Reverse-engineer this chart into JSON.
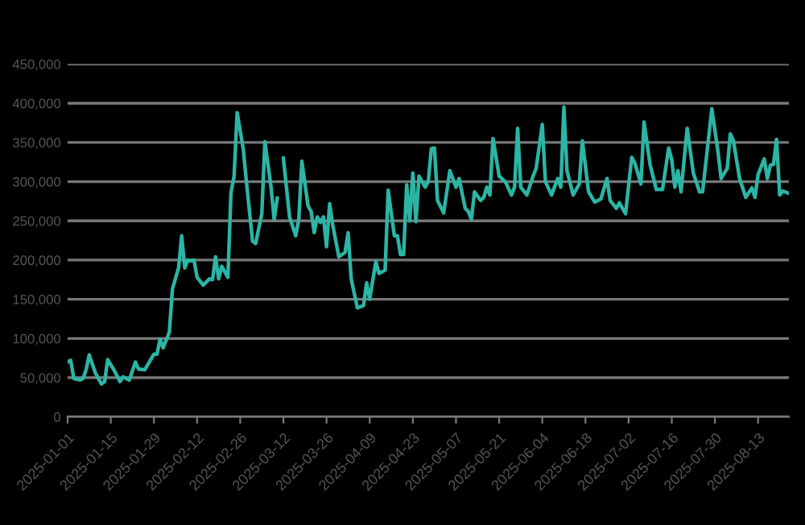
{
  "chart_data": {
    "type": "line",
    "x": [
      "2025-01-01",
      "2025-01-02",
      "2025-01-03",
      "2025-01-05",
      "2025-01-06",
      "2025-01-07",
      "2025-01-08",
      "2025-01-10",
      "2025-01-12",
      "2025-01-13",
      "2025-01-14",
      "2025-01-16",
      "2025-01-18",
      "2025-01-19",
      "2025-01-21",
      "2025-01-23",
      "2025-01-24",
      "2025-01-26",
      "2025-01-29",
      "2025-01-30",
      "2025-01-31",
      "2025-02-01",
      "2025-02-03",
      "2025-02-04",
      "2025-02-06",
      "2025-02-07",
      "2025-02-08",
      "2025-02-09",
      "2025-02-10",
      "2025-02-11",
      "2025-02-12",
      "2025-02-14",
      "2025-02-16",
      "2025-02-17",
      "2025-02-18",
      "2025-02-19",
      "2025-02-20",
      "2025-02-22",
      "2025-02-23",
      "2025-02-24",
      "2025-02-25",
      "2025-02-27",
      "2025-02-28",
      "2025-03-02",
      "2025-03-03",
      "2025-03-05",
      "2025-03-06",
      "2025-03-08",
      "2025-03-09",
      "2025-03-10",
      "2025-03-11",
      "2025-03-12",
      "2025-03-14",
      "2025-03-16",
      "2025-03-17",
      "2025-03-18",
      "2025-03-20",
      "2025-03-21",
      "2025-03-22",
      "2025-03-23",
      "2025-03-24",
      "2025-03-25",
      "2025-03-26",
      "2025-03-27",
      "2025-03-28",
      "2025-03-30",
      "2025-04-01",
      "2025-04-02",
      "2025-04-03",
      "2025-04-05",
      "2025-04-07",
      "2025-04-08",
      "2025-04-09",
      "2025-04-11",
      "2025-04-12",
      "2025-04-14",
      "2025-04-15",
      "2025-04-17",
      "2025-04-18",
      "2025-04-19",
      "2025-04-20",
      "2025-04-21",
      "2025-04-22",
      "2025-04-23",
      "2025-04-24",
      "2025-04-25",
      "2025-04-27",
      "2025-04-28",
      "2025-04-29",
      "2025-04-30",
      "2025-05-01",
      "2025-05-03",
      "2025-05-05",
      "2025-05-07",
      "2025-05-08",
      "2025-05-10",
      "2025-05-11",
      "2025-05-12",
      "2025-05-13",
      "2025-05-15",
      "2025-05-16",
      "2025-05-17",
      "2025-05-18",
      "2025-05-19",
      "2025-05-21",
      "2025-05-23",
      "2025-05-25",
      "2025-05-26",
      "2025-05-27",
      "2025-05-28",
      "2025-05-30",
      "2025-06-01",
      "2025-06-02",
      "2025-06-04",
      "2025-06-05",
      "2025-06-07",
      "2025-06-09",
      "2025-06-10",
      "2025-06-11",
      "2025-06-12",
      "2025-06-14",
      "2025-06-16",
      "2025-06-17",
      "2025-06-19",
      "2025-06-21",
      "2025-06-23",
      "2025-06-25",
      "2025-06-26",
      "2025-06-28",
      "2025-06-29",
      "2025-07-01",
      "2025-07-03",
      "2025-07-04",
      "2025-07-06",
      "2025-07-07",
      "2025-07-09",
      "2025-07-11",
      "2025-07-13",
      "2025-07-15",
      "2025-07-16",
      "2025-07-17",
      "2025-07-18",
      "2025-07-19",
      "2025-07-21",
      "2025-07-23",
      "2025-07-25",
      "2025-07-26",
      "2025-07-29",
      "2025-07-31",
      "2025-08-01",
      "2025-08-03",
      "2025-08-04",
      "2025-08-05",
      "2025-08-07",
      "2025-08-09",
      "2025-08-11",
      "2025-08-12",
      "2025-08-13",
      "2025-08-15",
      "2025-08-16",
      "2025-08-17",
      "2025-08-18",
      "2025-08-19",
      "2025-08-20",
      "2025-08-21",
      "2025-08-23"
    ],
    "series": [
      {
        "color": "#2bb5a5",
        "values": [
          70000,
          72000,
          49000,
          47000,
          49000,
          60000,
          79000,
          56000,
          42000,
          45000,
          73000,
          60000,
          45000,
          51000,
          47000,
          70000,
          61000,
          60000,
          80000,
          80000,
          99000,
          88000,
          108000,
          163000,
          190000,
          231000,
          190000,
          200000,
          199000,
          200000,
          178000,
          168000,
          176000,
          175000,
          204000,
          176000,
          192000,
          178000,
          286000,
          307000,
          388000,
          341000,
          300000,
          224000,
          221000,
          259000,
          351000,
          293000,
          252000,
          279000,
          null,
          330000,
          255000,
          231000,
          252000,
          326000,
          269000,
          262000,
          235000,
          255000,
          248000,
          255000,
          217000,
          272000,
          245000,
          204000,
          210000,
          235000,
          176000,
          139000,
          142000,
          171000,
          150000,
          198000,
          183000,
          187000,
          289000,
          231000,
          231000,
          207000,
          207000,
          296000,
          250000,
          311000,
          249000,
          307000,
          293000,
          300000,
          342000,
          343000,
          276000,
          260000,
          314000,
          293000,
          304000,
          266000,
          262000,
          252000,
          287000,
          276000,
          280000,
          293000,
          283000,
          355000,
          307000,
          300000,
          283000,
          293000,
          368000,
          293000,
          283000,
          307000,
          317000,
          373000,
          300000,
          283000,
          304000,
          293000,
          395000,
          314000,
          283000,
          297000,
          352000,
          287000,
          274000,
          278000,
          304000,
          276000,
          266000,
          273000,
          259000,
          331000,
          324000,
          297000,
          376000,
          321000,
          290000,
          290000,
          343000,
          328000,
          293000,
          314000,
          287000,
          368000,
          311000,
          287000,
          287000,
          393000,
          338000,
          304000,
          317000,
          361000,
          352000,
          304000,
          280000,
          292000,
          280000,
          309000,
          329000,
          304000,
          321000,
          322000,
          354000,
          283000,
          288000,
          285000
        ]
      }
    ],
    "xlim": [
      "2025-01-01",
      "2025-08-23"
    ],
    "xticks": [
      "2025-01-01",
      "2025-01-15",
      "2025-01-29",
      "2025-02-12",
      "2025-02-26",
      "2025-03-12",
      "2025-03-26",
      "2025-04-09",
      "2025-04-23",
      "2025-05-07",
      "2025-05-21",
      "2025-06-04",
      "2025-06-18",
      "2025-07-02",
      "2025-07-16",
      "2025-07-30",
      "2025-08-13"
    ],
    "ylim": [
      0,
      450000
    ],
    "yticks": [
      {
        "value": 0,
        "label": "0"
      },
      {
        "value": 50000,
        "label": "50,000"
      },
      {
        "value": 100000,
        "label": "100,000"
      },
      {
        "value": 150000,
        "label": "150,000"
      },
      {
        "value": 200000,
        "label": "200,000"
      },
      {
        "value": 250000,
        "label": "250,000"
      },
      {
        "value": 300000,
        "label": "300,000"
      },
      {
        "value": 350000,
        "label": "350,000"
      },
      {
        "value": 400000,
        "label": "400,000"
      },
      {
        "value": 450000,
        "label": "450,000"
      }
    ],
    "grid": "y",
    "line_style": "solid"
  }
}
